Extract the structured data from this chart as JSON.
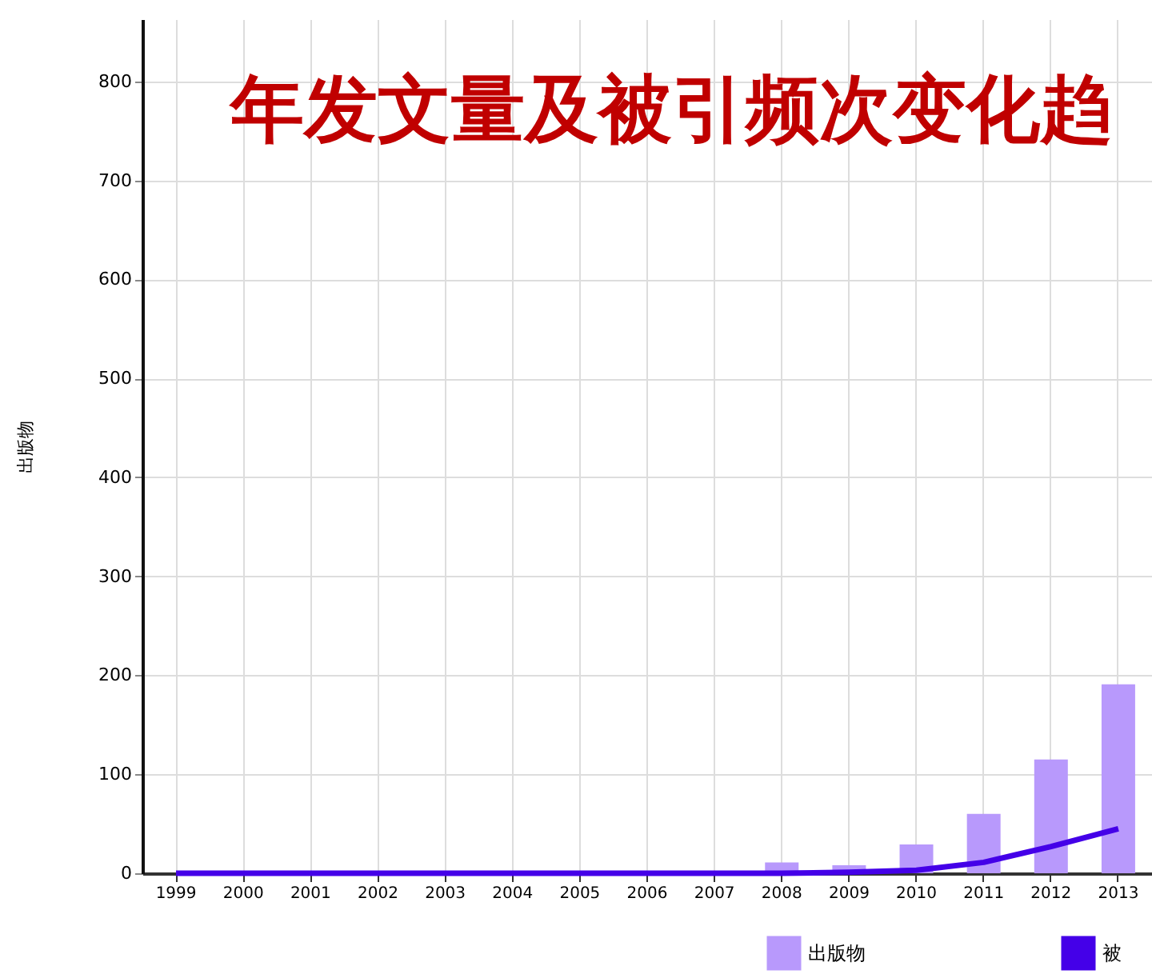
{
  "chart_data": {
    "type": "bar",
    "title": "年发文量及被引频次变化趋",
    "ylabel": "出版物",
    "categories": [
      "1999",
      "2000",
      "2001",
      "2002",
      "2003",
      "2004",
      "2005",
      "2006",
      "2007",
      "2008",
      "2009",
      "2010",
      "2011",
      "2012",
      "2013"
    ],
    "series": [
      {
        "name": "出版物",
        "color": "#b899fc",
        "values": [
          0,
          0,
          0,
          0,
          0,
          0,
          0,
          0,
          0,
          11,
          8,
          29,
          60,
          115,
          191
        ]
      },
      {
        "name": "被",
        "type": "line",
        "color": "#4400e8",
        "values": [
          0,
          0,
          0,
          0,
          0,
          0,
          0,
          0,
          0,
          0,
          1,
          3,
          11,
          27,
          45
        ]
      }
    ],
    "ylim": [
      0,
      863
    ],
    "yticks": [
      0,
      100,
      200,
      300,
      400,
      500,
      600,
      700,
      800
    ],
    "grid": true,
    "legend": "bottom"
  }
}
